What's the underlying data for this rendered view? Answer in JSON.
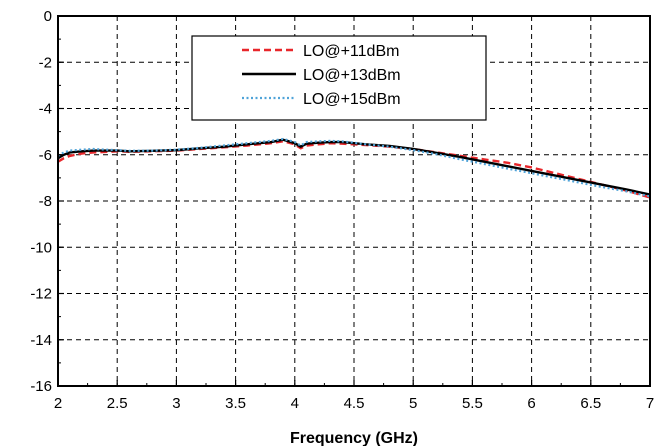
{
  "chart_data": {
    "type": "line",
    "title": "",
    "xlabel": "Frequency (GHz)",
    "ylabel": "",
    "xlim": [
      2,
      7
    ],
    "ylim": [
      -16,
      0
    ],
    "xticks": [
      2,
      2.5,
      3,
      3.5,
      4,
      4.5,
      5,
      5.5,
      6,
      6.5,
      7
    ],
    "yticks": [
      0,
      -2,
      -4,
      -6,
      -8,
      -10,
      -12,
      -14,
      -16
    ],
    "xtick_labels": [
      "2",
      "2.5",
      "3",
      "3.5",
      "4",
      "4.5",
      "5",
      "5.5",
      "6",
      "6.5",
      "7"
    ],
    "ytick_labels": [
      "0",
      "-2",
      "-4",
      "-6",
      "-8",
      "-10",
      "-12",
      "-14",
      "-16"
    ],
    "grid": true,
    "legend_position": "top-center",
    "series": [
      {
        "name": "LO@+11dBm",
        "color": "#e8262a",
        "dash": "dashed",
        "x": [
          2.0,
          2.05,
          2.1,
          2.2,
          2.3,
          2.4,
          2.5,
          2.6,
          2.8,
          3.0,
          3.2,
          3.4,
          3.6,
          3.8,
          3.9,
          3.95,
          4.0,
          4.05,
          4.1,
          4.2,
          4.3,
          4.4,
          4.5,
          4.6,
          4.8,
          5.0,
          5.2,
          5.4,
          5.6,
          5.8,
          6.0,
          6.2,
          6.4,
          6.6,
          6.8,
          7.0
        ],
        "y": [
          -6.3,
          -6.15,
          -6.05,
          -5.95,
          -5.9,
          -5.88,
          -5.85,
          -5.87,
          -5.85,
          -5.82,
          -5.75,
          -5.68,
          -5.6,
          -5.5,
          -5.42,
          -5.48,
          -5.55,
          -5.72,
          -5.6,
          -5.55,
          -5.5,
          -5.52,
          -5.55,
          -5.58,
          -5.65,
          -5.75,
          -5.9,
          -6.05,
          -6.2,
          -6.35,
          -6.55,
          -6.8,
          -7.05,
          -7.3,
          -7.55,
          -7.85
        ]
      },
      {
        "name": "LO@+13dBm",
        "color": "#000000",
        "dash": "solid",
        "x": [
          2.0,
          2.05,
          2.1,
          2.2,
          2.3,
          2.4,
          2.5,
          2.6,
          2.8,
          3.0,
          3.2,
          3.4,
          3.6,
          3.8,
          3.9,
          3.95,
          4.0,
          4.05,
          4.1,
          4.2,
          4.3,
          4.4,
          4.5,
          4.6,
          4.8,
          5.0,
          5.2,
          5.4,
          5.6,
          5.8,
          6.0,
          6.2,
          6.4,
          6.6,
          6.8,
          7.0
        ],
        "y": [
          -6.15,
          -6.0,
          -5.9,
          -5.85,
          -5.82,
          -5.82,
          -5.82,
          -5.85,
          -5.83,
          -5.8,
          -5.72,
          -5.65,
          -5.55,
          -5.45,
          -5.35,
          -5.42,
          -5.5,
          -5.65,
          -5.52,
          -5.48,
          -5.45,
          -5.45,
          -5.5,
          -5.55,
          -5.62,
          -5.75,
          -5.92,
          -6.1,
          -6.3,
          -6.5,
          -6.7,
          -6.9,
          -7.1,
          -7.3,
          -7.5,
          -7.72
        ]
      },
      {
        "name": "LO@+15dBm",
        "color": "#4fa3d8",
        "dash": "dotted",
        "x": [
          2.0,
          2.05,
          2.1,
          2.2,
          2.3,
          2.4,
          2.5,
          2.6,
          2.8,
          3.0,
          3.2,
          3.4,
          3.6,
          3.8,
          3.9,
          3.95,
          4.0,
          4.05,
          4.1,
          4.2,
          4.3,
          4.4,
          4.5,
          4.6,
          4.8,
          5.0,
          5.2,
          5.4,
          5.6,
          5.8,
          6.0,
          6.2,
          6.4,
          6.6,
          6.8,
          7.0
        ],
        "y": [
          -6.05,
          -5.9,
          -5.82,
          -5.78,
          -5.75,
          -5.78,
          -5.8,
          -5.83,
          -5.82,
          -5.78,
          -5.7,
          -5.6,
          -5.5,
          -5.4,
          -5.32,
          -5.38,
          -5.45,
          -5.6,
          -5.45,
          -5.42,
          -5.4,
          -5.42,
          -5.48,
          -5.55,
          -5.65,
          -5.8,
          -5.98,
          -6.2,
          -6.4,
          -6.6,
          -6.8,
          -7.0,
          -7.2,
          -7.4,
          -7.58,
          -7.8
        ]
      }
    ]
  }
}
